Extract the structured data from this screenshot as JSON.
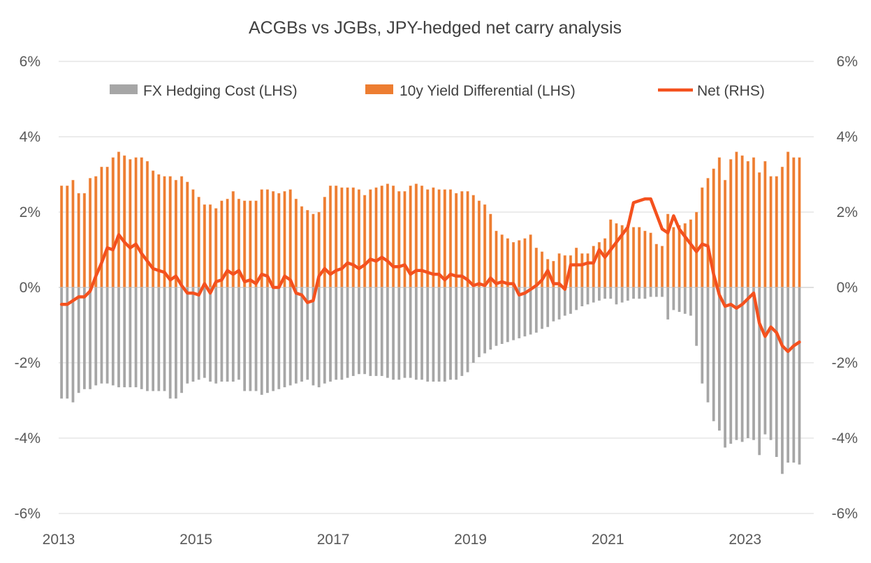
{
  "chart_data": {
    "type": "bar",
    "title": "ACGBs vs JGBs, JPY-hedged net carry analysis",
    "xlabel": "",
    "ylabel_left": "",
    "ylabel_right": "",
    "ylim_left": [
      -6,
      6
    ],
    "ylim_right": [
      -6,
      6
    ],
    "y_ticks": [
      -6,
      -4,
      -2,
      0,
      2,
      4,
      6
    ],
    "y_tick_labels": [
      "-6%",
      "-4%",
      "-2%",
      "0%",
      "2%",
      "4%",
      "6%"
    ],
    "x_tick_labels": [
      "2013",
      "2015",
      "2017",
      "2019",
      "2021",
      "2023"
    ],
    "x_start": "2013-01",
    "x_end": "2023-08",
    "grid": true,
    "legend_position": "top",
    "colors": {
      "fx_hedging_cost": "#a6a6a6",
      "yield_differential": "#ed7d31",
      "net": "#f4511e",
      "grid": "#d9d9d9",
      "text": "#595959"
    },
    "series": [
      {
        "name": "FX Hedging Cost (LHS)",
        "type": "bar",
        "axis": "left",
        "values": [
          -2.95,
          -2.95,
          -3.05,
          -2.8,
          -2.7,
          -2.7,
          -2.6,
          -2.55,
          -2.55,
          -2.6,
          -2.65,
          -2.65,
          -2.65,
          -2.65,
          -2.7,
          -2.75,
          -2.75,
          -2.75,
          -2.75,
          -2.95,
          -2.95,
          -2.8,
          -2.55,
          -2.5,
          -2.45,
          -2.4,
          -2.5,
          -2.55,
          -2.5,
          -2.5,
          -2.5,
          -2.45,
          -2.75,
          -2.75,
          -2.75,
          -2.85,
          -2.8,
          -2.75,
          -2.7,
          -2.65,
          -2.6,
          -2.55,
          -2.5,
          -2.45,
          -2.6,
          -2.65,
          -2.55,
          -2.5,
          -2.45,
          -2.45,
          -2.4,
          -2.35,
          -2.3,
          -2.3,
          -2.35,
          -2.35,
          -2.35,
          -2.4,
          -2.45,
          -2.45,
          -2.4,
          -2.4,
          -2.45,
          -2.45,
          -2.5,
          -2.5,
          -2.5,
          -2.5,
          -2.45,
          -2.45,
          -2.35,
          -2.25,
          -2.0,
          -1.85,
          -1.75,
          -1.65,
          -1.55,
          -1.5,
          -1.45,
          -1.4,
          -1.35,
          -1.3,
          -1.25,
          -1.2,
          -1.1,
          -1.05,
          -0.9,
          -0.85,
          -0.75,
          -0.7,
          -0.6,
          -0.5,
          -0.45,
          -0.4,
          -0.35,
          -0.3,
          -0.3,
          -0.45,
          -0.4,
          -0.35,
          -0.3,
          -0.3,
          -0.3,
          -0.25,
          -0.25,
          -0.25,
          -0.85,
          -0.6,
          -0.65,
          -0.7,
          -0.75,
          -1.55,
          -2.55,
          -3.05,
          -3.55,
          -3.8,
          -4.25,
          -4.15,
          -4.05,
          -4.1,
          -4.0,
          -4.05,
          -4.45,
          -3.9,
          -4.05,
          -4.5,
          -4.95,
          -4.65,
          -4.65,
          -4.7
        ],
        "color": "#a6a6a6"
      },
      {
        "name": "10y Yield Differential (LHS)",
        "type": "bar",
        "axis": "left",
        "values": [
          2.7,
          2.7,
          2.85,
          2.5,
          2.5,
          2.9,
          2.95,
          3.2,
          3.2,
          3.45,
          3.6,
          3.5,
          3.4,
          3.45,
          3.45,
          3.35,
          3.1,
          3.0,
          2.95,
          2.95,
          2.85,
          2.95,
          2.8,
          2.6,
          2.4,
          2.2,
          2.2,
          2.1,
          2.3,
          2.35,
          2.55,
          2.35,
          2.3,
          2.3,
          2.3,
          2.6,
          2.6,
          2.55,
          2.5,
          2.55,
          2.6,
          2.35,
          2.15,
          2.05,
          1.95,
          2.0,
          2.4,
          2.7,
          2.7,
          2.65,
          2.65,
          2.65,
          2.6,
          2.45,
          2.6,
          2.65,
          2.7,
          2.75,
          2.7,
          2.55,
          2.55,
          2.7,
          2.75,
          2.7,
          2.6,
          2.65,
          2.6,
          2.6,
          2.6,
          2.5,
          2.55,
          2.55,
          2.45,
          2.3,
          2.2,
          1.95,
          1.5,
          1.4,
          1.3,
          1.2,
          1.25,
          1.3,
          1.4,
          1.05,
          0.95,
          0.75,
          0.7,
          0.9,
          0.85,
          0.85,
          1.05,
          0.9,
          0.9,
          1.1,
          1.2,
          1.3,
          1.8,
          1.7,
          1.65,
          1.65,
          1.6,
          1.6,
          1.5,
          1.45,
          1.15,
          1.1,
          1.95,
          1.6,
          1.65,
          1.7,
          1.8,
          2.0,
          2.65,
          2.9,
          3.15,
          3.45,
          2.85,
          3.4,
          3.6,
          3.5,
          3.35,
          3.45,
          3.05,
          3.35,
          2.95,
          2.95,
          3.2,
          3.6,
          3.45,
          3.45
        ],
        "color": "#ed7d31"
      },
      {
        "name": "Net (RHS)",
        "type": "line",
        "axis": "right",
        "values": [
          -0.45,
          -0.45,
          -0.35,
          -0.25,
          -0.25,
          -0.1,
          0.3,
          0.65,
          1.05,
          1.0,
          1.4,
          1.2,
          1.05,
          1.15,
          0.9,
          0.7,
          0.5,
          0.45,
          0.4,
          0.2,
          0.3,
          0.05,
          -0.15,
          -0.15,
          -0.2,
          0.1,
          -0.15,
          0.15,
          0.2,
          0.45,
          0.35,
          0.45,
          0.15,
          0.2,
          0.1,
          0.35,
          0.3,
          0.0,
          0.0,
          0.3,
          0.2,
          -0.15,
          -0.2,
          -0.4,
          -0.35,
          0.3,
          0.5,
          0.35,
          0.45,
          0.5,
          0.65,
          0.6,
          0.5,
          0.6,
          0.75,
          0.7,
          0.8,
          0.7,
          0.55,
          0.55,
          0.6,
          0.35,
          0.45,
          0.45,
          0.4,
          0.35,
          0.35,
          0.2,
          0.35,
          0.3,
          0.3,
          0.2,
          0.05,
          0.1,
          0.05,
          0.25,
          0.1,
          0.15,
          0.1,
          0.1,
          -0.2,
          -0.15,
          -0.05,
          0.05,
          0.2,
          0.45,
          0.1,
          0.1,
          -0.05,
          0.6,
          0.6,
          0.6,
          0.65,
          0.65,
          1.0,
          0.8,
          1.0,
          1.2,
          1.4,
          1.6,
          2.25,
          2.3,
          2.35,
          2.35,
          1.95,
          1.55,
          1.45,
          1.9,
          1.55,
          1.35,
          1.15,
          0.95,
          1.15,
          1.1,
          0.35,
          -0.2,
          -0.5,
          -0.45,
          -0.55,
          -0.45,
          -0.3,
          -0.15,
          -0.95,
          -1.3,
          -1.05,
          -1.2,
          -1.55,
          -1.7,
          -1.55,
          -1.45
        ],
        "color": "#f4511e"
      }
    ]
  }
}
